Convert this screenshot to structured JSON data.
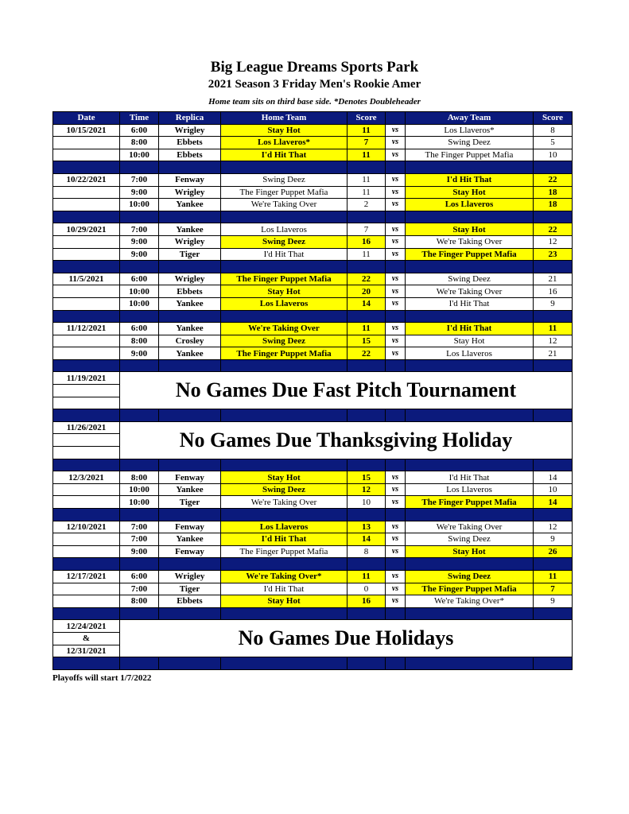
{
  "header": {
    "title": "Big League Dreams Sports Park",
    "subtitle": "2021 Season 3 Friday Men's Rookie Amer",
    "note": "Home team sits on third base side.  *Denotes Doubleheader"
  },
  "colors": {
    "header_bg": "#0b1a7c",
    "winner_highlight": "#ffff00"
  },
  "columns": [
    "Date",
    "Time",
    "Replica",
    "Home Team",
    "Score",
    "",
    "Away Team",
    "Score"
  ],
  "vs_label": "vs",
  "weeks": [
    {
      "date": "10/15/2021",
      "games": [
        {
          "time": "6:00",
          "replica": "Wrigley",
          "home": "Stay Hot",
          "home_score": "11",
          "away": "Los Llaveros*",
          "away_score": "8"
        },
        {
          "time": "8:00",
          "replica": "Ebbets",
          "home": "Los Llaveros*",
          "home_score": "7",
          "away": "Swing Deez",
          "away_score": "5"
        },
        {
          "time": "10:00",
          "replica": "Ebbets",
          "home": "I'd Hit That",
          "home_score": "11",
          "away": "The Finger Puppet Mafia",
          "away_score": "10"
        }
      ]
    },
    {
      "date": "10/22/2021",
      "games": [
        {
          "time": "7:00",
          "replica": "Fenway",
          "home": "Swing Deez",
          "home_score": "11",
          "away": "I'd Hit That",
          "away_score": "22"
        },
        {
          "time": "9:00",
          "replica": "Wrigley",
          "home": "The Finger Puppet Mafia",
          "home_score": "11",
          "away": "Stay Hot",
          "away_score": "18"
        },
        {
          "time": "10:00",
          "replica": "Yankee",
          "home": "We're Taking Over",
          "home_score": "2",
          "away": "Los Llaveros",
          "away_score": "18"
        }
      ]
    },
    {
      "date": "10/29/2021",
      "games": [
        {
          "time": "7:00",
          "replica": "Yankee",
          "home": "Los Llaveros",
          "home_score": "7",
          "away": "Stay Hot",
          "away_score": "22"
        },
        {
          "time": "9:00",
          "replica": "Wrigley",
          "home": "Swing Deez",
          "home_score": "16",
          "away": "We're Taking Over",
          "away_score": "12"
        },
        {
          "time": "9:00",
          "replica": "Tiger",
          "home": "I'd Hit That",
          "home_score": "11",
          "away": "The Finger Puppet Mafia",
          "away_score": "23"
        }
      ]
    },
    {
      "date": "11/5/2021",
      "games": [
        {
          "time": "6:00",
          "replica": "Wrigley",
          "home": "The Finger Puppet Mafia",
          "home_score": "22",
          "away": "Swing Deez",
          "away_score": "21"
        },
        {
          "time": "10:00",
          "replica": "Ebbets",
          "home": "Stay Hot",
          "home_score": "20",
          "away": "We're Taking Over",
          "away_score": "16"
        },
        {
          "time": "10:00",
          "replica": "Yankee",
          "home": "Los Llaveros",
          "home_score": "14",
          "away": "I'd Hit That",
          "away_score": "9"
        }
      ]
    },
    {
      "date": "11/12/2021",
      "games": [
        {
          "time": "6:00",
          "replica": "Yankee",
          "home": "We're Taking Over",
          "home_score": "11",
          "away": "I'd Hit That",
          "away_score": "11"
        },
        {
          "time": "8:00",
          "replica": "Crosley",
          "home": "Swing Deez",
          "home_score": "15",
          "away": "Stay Hot",
          "away_score": "12"
        },
        {
          "time": "9:00",
          "replica": "Yankee",
          "home": "The Finger Puppet Mafia",
          "home_score": "22",
          "away": "Los Llaveros",
          "away_score": "21"
        }
      ]
    },
    {
      "dates": [
        "11/19/2021",
        "",
        ""
      ],
      "message": "No Games Due Fast Pitch Tournament"
    },
    {
      "dates": [
        "11/26/2021",
        "",
        ""
      ],
      "message": "No Games Due Thanksgiving Holiday"
    },
    {
      "date": "12/3/2021",
      "games": [
        {
          "time": "8:00",
          "replica": "Fenway",
          "home": "Stay Hot",
          "home_score": "15",
          "away": "I'd Hit That",
          "away_score": "14"
        },
        {
          "time": "10:00",
          "replica": "Yankee",
          "home": "Swing Deez",
          "home_score": "12",
          "away": "Los Llaveros",
          "away_score": "10"
        },
        {
          "time": "10:00",
          "replica": "Tiger",
          "home": "We're Taking Over",
          "home_score": "10",
          "away": "The Finger Puppet Mafia",
          "away_score": "14"
        }
      ]
    },
    {
      "date": "12/10/2021",
      "games": [
        {
          "time": "7:00",
          "replica": "Fenway",
          "home": "Los Llaveros",
          "home_score": "13",
          "away": "We're Taking Over",
          "away_score": "12"
        },
        {
          "time": "7:00",
          "replica": "Yankee",
          "home": "I'd Hit That",
          "home_score": "14",
          "away": "Swing Deez",
          "away_score": "9"
        },
        {
          "time": "9:00",
          "replica": "Fenway",
          "home": "The Finger Puppet Mafia",
          "home_score": "8",
          "away": "Stay Hot",
          "away_score": "26"
        }
      ]
    },
    {
      "date": "12/17/2021",
      "games": [
        {
          "time": "6:00",
          "replica": "Wrigley",
          "home": "We're Taking Over*",
          "home_score": "11",
          "away": "Swing Deez",
          "away_score": "11"
        },
        {
          "time": "7:00",
          "replica": "Tiger",
          "home": "I'd Hit That",
          "home_score": "0",
          "away": "The Finger Puppet Mafia",
          "away_score": "7"
        },
        {
          "time": "8:00",
          "replica": "Ebbets",
          "home": "Stay Hot",
          "home_score": "16",
          "away": "We're Taking Over*",
          "away_score": "9"
        }
      ]
    },
    {
      "dates": [
        "12/24/2021",
        "&",
        "12/31/2021"
      ],
      "message": "No Games Due Holidays"
    }
  ],
  "footer": "Playoffs will start 1/7/2022"
}
